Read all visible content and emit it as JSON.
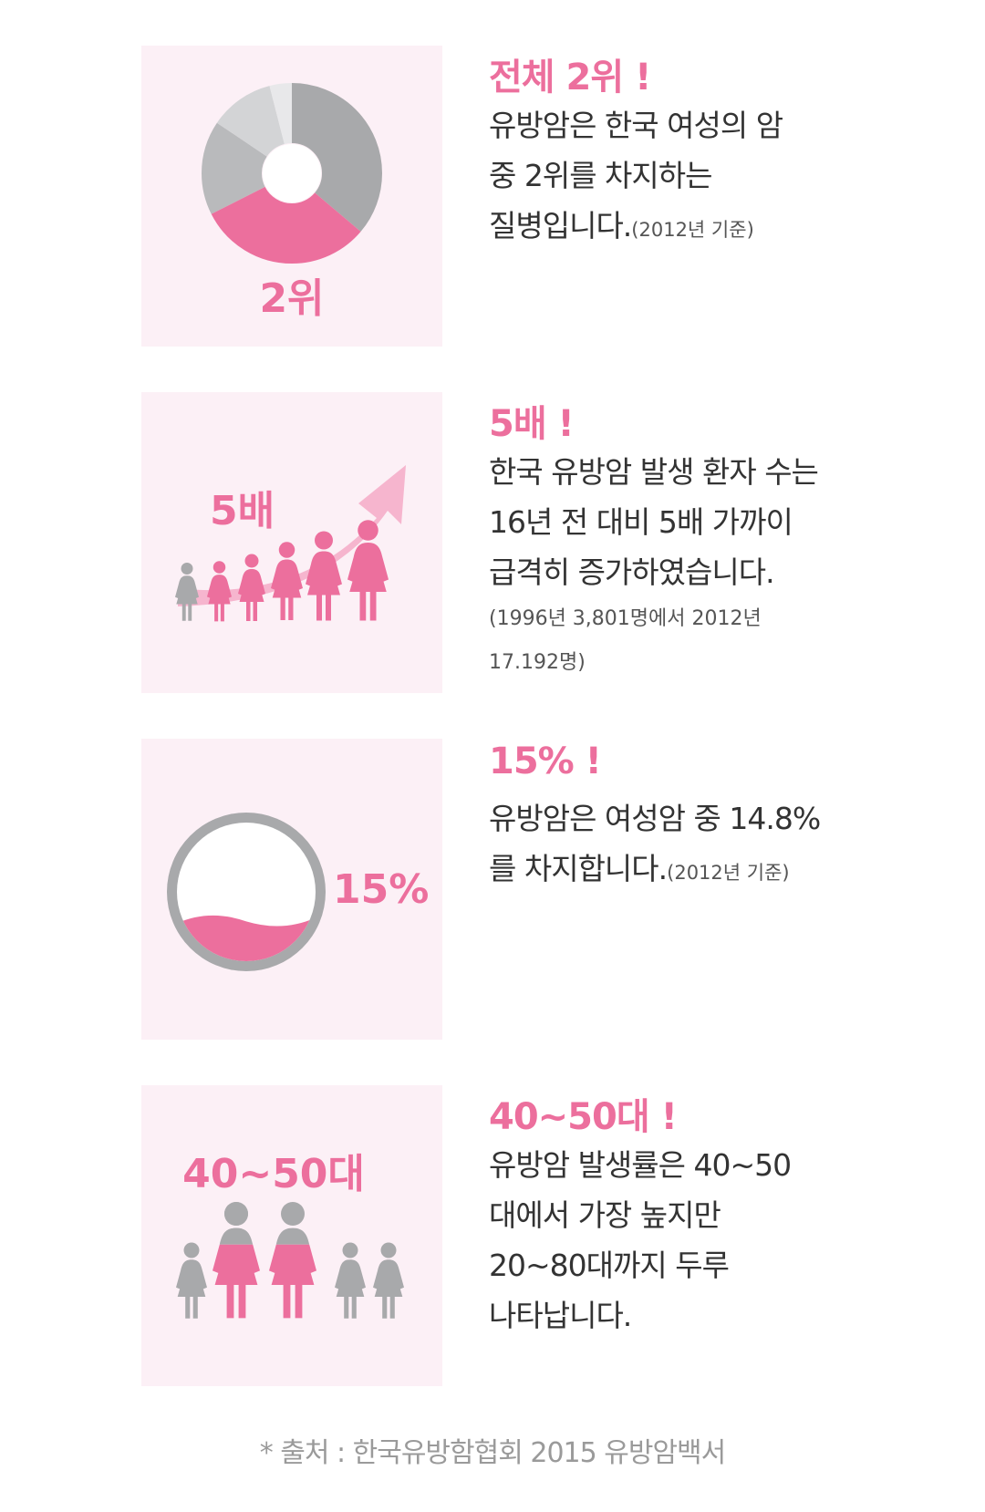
{
  "colors": {
    "pink": "#ec6f9d",
    "light_pink": "#f6b5ce",
    "panel_bg": "#fcf0f6",
    "gray": "#a8a9ab",
    "light_gray": "#cfd0d2",
    "text": "#333333"
  },
  "sections": [
    {
      "icon": "donut-chart-icon",
      "graphic_label": "2위",
      "heading": "전체 2위 !",
      "lines": [
        "유방암은 한국 여성의 암",
        "중 2위를 차지하는"
      ],
      "last_line": "질병입니다.",
      "note": "(2012년 기준)"
    },
    {
      "icon": "growing-people-arrow-icon",
      "graphic_label": "5배",
      "heading": "5배 !",
      "lines": [
        "한국 유방암 발생 환자 수는",
        "16년 전 대비 5배 가까이",
        "급격히 증가하였습니다."
      ],
      "notes": [
        "(1996년 3,801명에서 2012년",
        "17.192명)"
      ]
    },
    {
      "icon": "fill-level-circle-icon",
      "graphic_label": "15%",
      "fill_level": 0.3,
      "heading": "15% !",
      "lines": [
        "유방암은 여성암 중 14.8%"
      ],
      "last_line": "를 차지합니다.",
      "note": "(2012년 기준)"
    },
    {
      "icon": "people-group-icon",
      "graphic_label": "40~50대",
      "heading": "40~50대 !",
      "lines": [
        "유방암 발생률은 40~50",
        "대에서 가장 높지만",
        "20~80대까지 두루",
        "나타납니다."
      ]
    }
  ],
  "source": "* 출처 : 한국유방함협회 2015 유방암백서"
}
